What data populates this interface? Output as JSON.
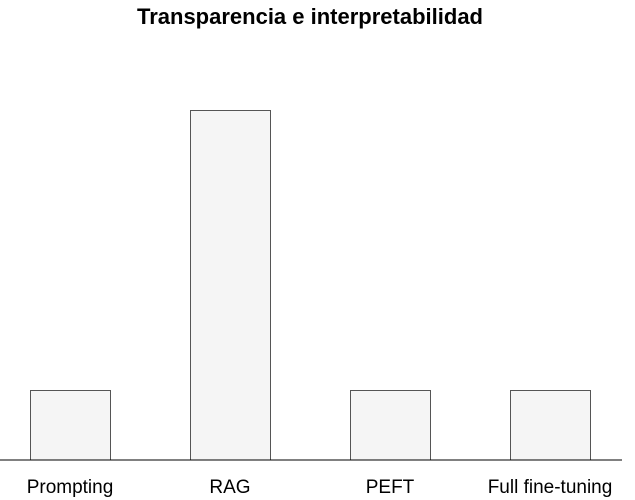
{
  "chart_data": {
    "type": "bar",
    "title": "Transparencia e interpretabilidad",
    "xlabel": "",
    "ylabel": "",
    "categories": [
      "Prompting",
      "RAG",
      "PEFT",
      "Full fine-tuning"
    ],
    "values": [
      1,
      5,
      1,
      1
    ],
    "ylim": [
      0,
      5
    ],
    "grid": false,
    "y_axis_visible": false,
    "legend": "none",
    "colors": {
      "bar_fill": "#f5f5f5",
      "bar_stroke": "#555555",
      "baseline": "#000000",
      "text": "#000000"
    }
  }
}
